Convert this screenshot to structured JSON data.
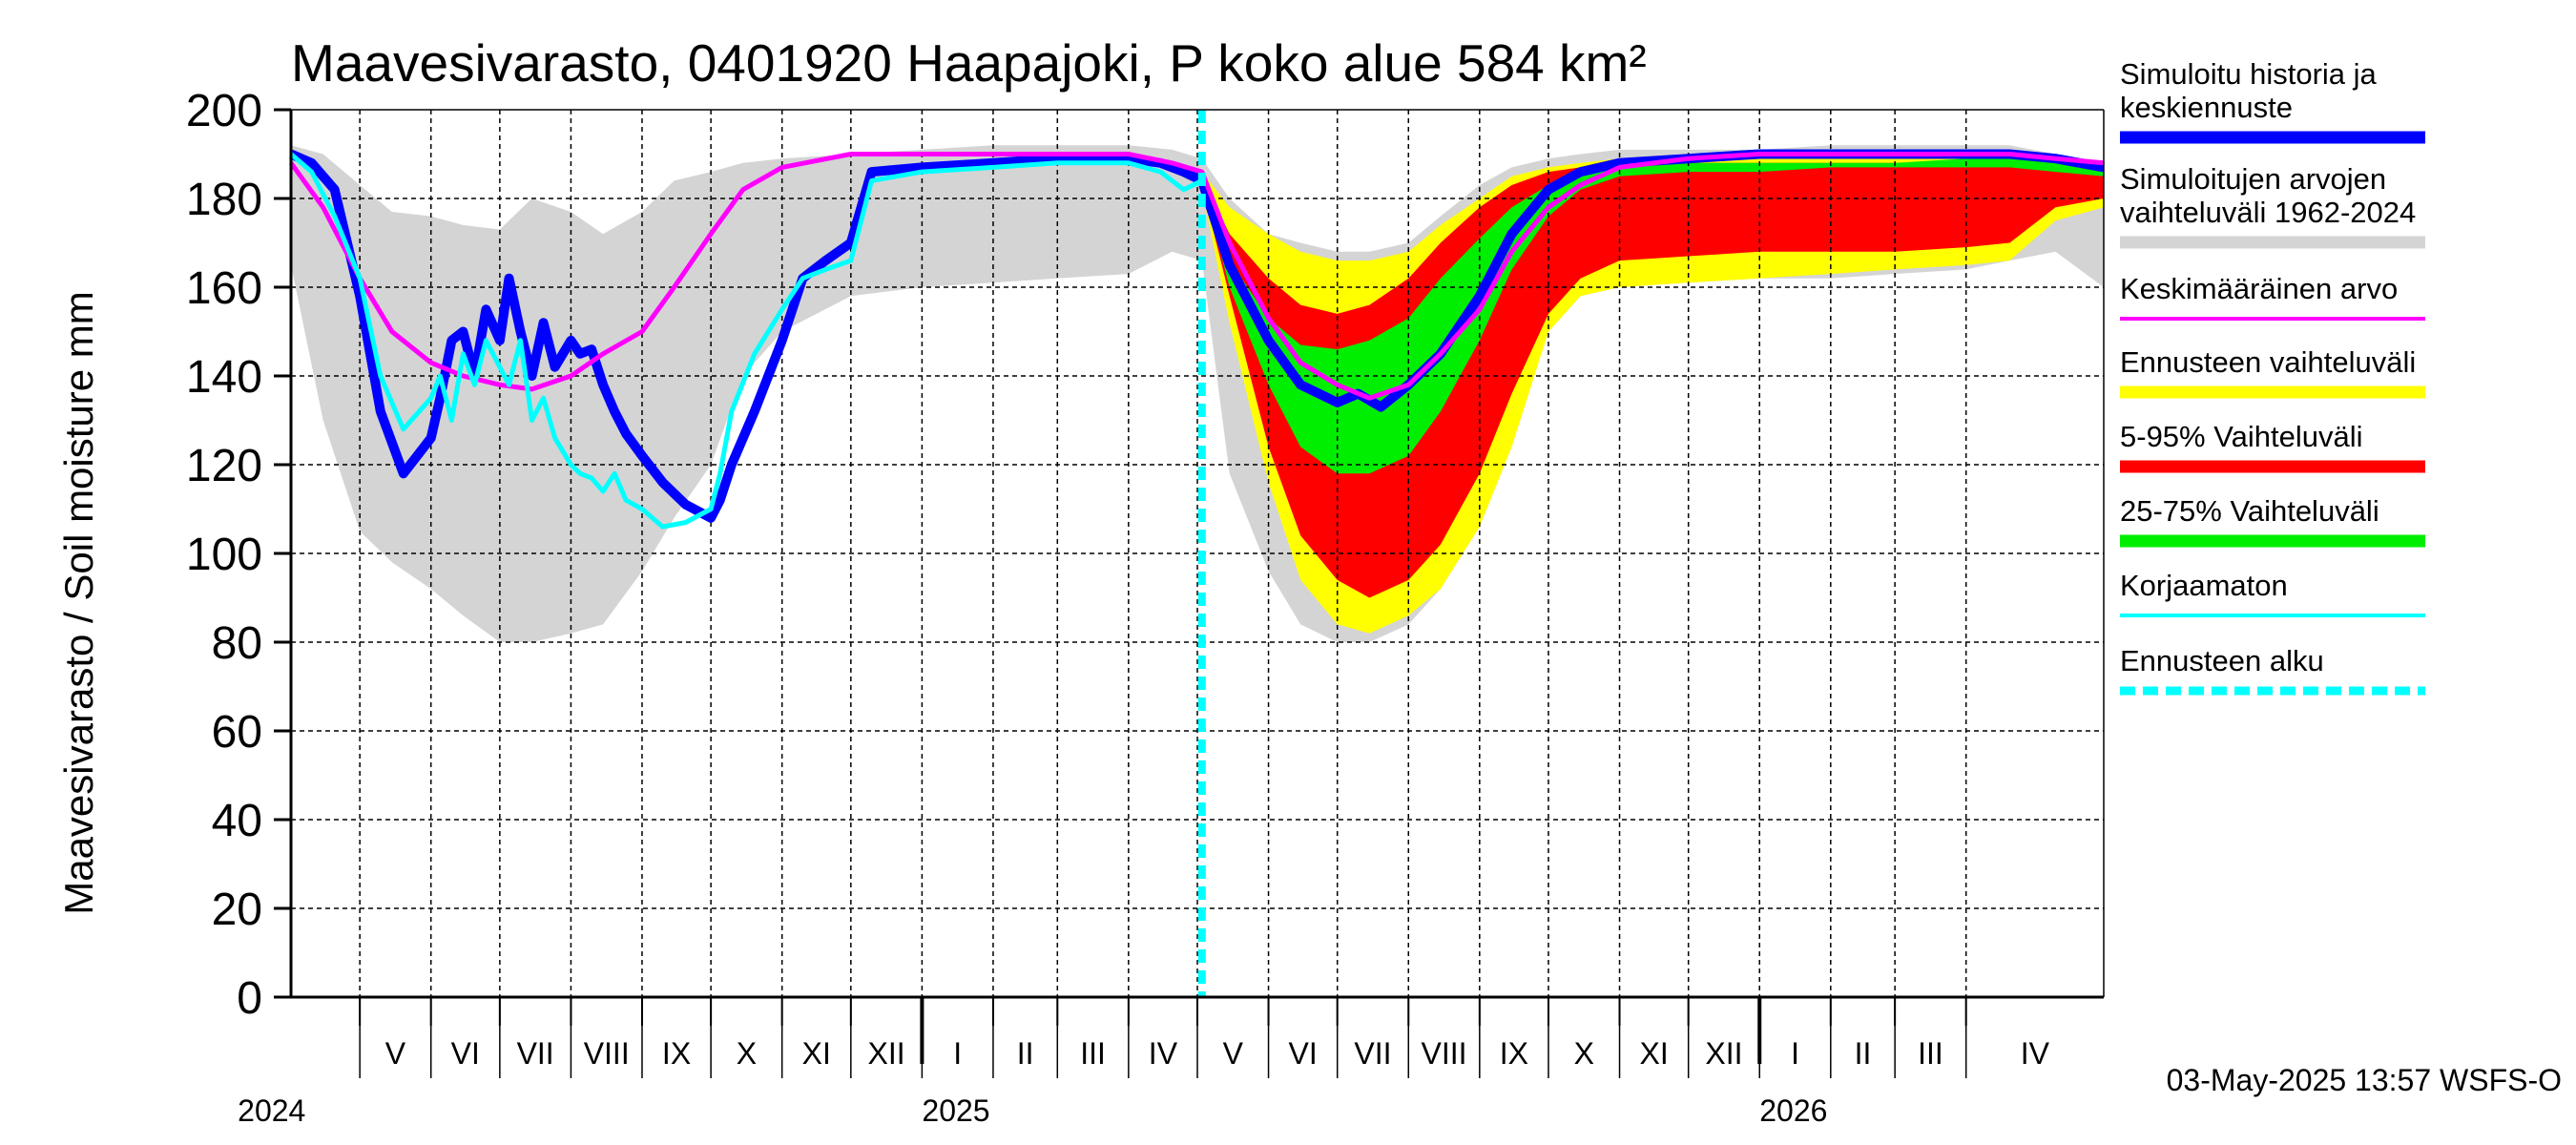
{
  "chart_data": {
    "type": "area",
    "title": "Maavesivarasto, 0401920 Haapajoki, P koko alue 584 km²",
    "ylabel": "Maavesivarasto / Soil moisture   mm",
    "ylim": [
      0,
      200
    ],
    "yticks": [
      "0",
      "20",
      "40",
      "60",
      "80",
      "100",
      "120",
      "140",
      "160",
      "180",
      "200"
    ],
    "grid": true,
    "legend_position": "right",
    "x_range": [
      "2024-04-01",
      "2026-05-31"
    ],
    "forecast_start": "2025-05-03",
    "months": [
      {
        "label": "V",
        "start": "2024-05-01"
      },
      {
        "label": "VI",
        "start": "2024-06-01"
      },
      {
        "label": "VII",
        "start": "2024-07-01"
      },
      {
        "label": "VIII",
        "start": "2024-08-01"
      },
      {
        "label": "IX",
        "start": "2024-09-01"
      },
      {
        "label": "X",
        "start": "2024-10-01"
      },
      {
        "label": "XI",
        "start": "2024-11-01"
      },
      {
        "label": "XII",
        "start": "2024-12-01"
      },
      {
        "label": "I",
        "start": "2025-01-01"
      },
      {
        "label": "II",
        "start": "2025-02-01"
      },
      {
        "label": "III",
        "start": "2025-03-01"
      },
      {
        "label": "IV",
        "start": "2025-04-01"
      },
      {
        "label": "V",
        "start": "2025-05-01"
      },
      {
        "label": "VI",
        "start": "2025-06-01"
      },
      {
        "label": "VII",
        "start": "2025-07-01"
      },
      {
        "label": "VIII",
        "start": "2025-08-01"
      },
      {
        "label": "IX",
        "start": "2025-09-01"
      },
      {
        "label": "X",
        "start": "2025-10-01"
      },
      {
        "label": "XI",
        "start": "2025-11-01"
      },
      {
        "label": "XII",
        "start": "2025-12-01"
      },
      {
        "label": "I",
        "start": "2026-01-01"
      },
      {
        "label": "II",
        "start": "2026-02-01"
      },
      {
        "label": "III",
        "start": "2026-03-01"
      },
      {
        "label": "IV",
        "start": "2026-04-01"
      }
    ],
    "years": [
      {
        "label": "2024",
        "at": "2024-05-01"
      },
      {
        "label": "2025",
        "at": "2025-01-01"
      },
      {
        "label": "2026",
        "at": "2026-01-01"
      }
    ],
    "bands": [
      {
        "legend": "vaihteluväli 1962-2024",
        "color": "#d4d4d4",
        "x": [
          "2024-04-01",
          "2024-04-15",
          "2024-05-01",
          "2024-05-15",
          "2024-06-01",
          "2024-06-15",
          "2024-07-01",
          "2024-07-15",
          "2024-08-01",
          "2024-08-15",
          "2024-09-01",
          "2024-09-15",
          "2024-10-01",
          "2024-10-15",
          "2024-11-01",
          "2024-12-01",
          "2025-01-01",
          "2025-02-01",
          "2025-03-01",
          "2025-04-01",
          "2025-04-20",
          "2025-05-03",
          "2025-05-15",
          "2025-06-01",
          "2025-06-15",
          "2025-07-01",
          "2025-07-15",
          "2025-08-01",
          "2025-08-15",
          "2025-09-01",
          "2025-09-15",
          "2025-10-01",
          "2025-10-15",
          "2025-11-01",
          "2025-12-01",
          "2026-01-01",
          "2026-02-01",
          "2026-03-01",
          "2026-04-01",
          "2026-04-20",
          "2026-05-10",
          "2026-05-31"
        ],
        "high": [
          192,
          190,
          183,
          177,
          176,
          174,
          173,
          180,
          177,
          172,
          177,
          184,
          186,
          188,
          189,
          190,
          191,
          192,
          192,
          192,
          191,
          189,
          180,
          172,
          170,
          168,
          168,
          170,
          176,
          183,
          187,
          189,
          190,
          191,
          191,
          191,
          192,
          192,
          192,
          192,
          190,
          188
        ],
        "low": [
          165,
          130,
          105,
          98,
          92,
          86,
          80,
          80,
          82,
          84,
          96,
          108,
          120,
          140,
          150,
          158,
          160,
          161,
          162,
          163,
          168,
          166,
          118,
          96,
          84,
          80,
          80,
          84,
          92,
          112,
          130,
          150,
          158,
          160,
          161,
          162,
          162,
          163,
          164,
          166,
          168,
          160
        ]
      },
      {
        "legend": "Ennusteen vaihteluväli",
        "color": "#ffff00",
        "x": [
          "2025-05-03",
          "2025-05-15",
          "2025-06-01",
          "2025-06-15",
          "2025-07-01",
          "2025-07-15",
          "2025-08-01",
          "2025-08-15",
          "2025-09-01",
          "2025-09-15",
          "2025-10-01",
          "2025-10-15",
          "2025-11-01",
          "2025-12-01",
          "2026-01-01",
          "2026-02-01",
          "2026-03-01",
          "2026-04-01",
          "2026-04-20",
          "2026-05-10",
          "2026-05-31"
        ],
        "high": [
          186,
          178,
          172,
          168,
          166,
          166,
          168,
          174,
          180,
          185,
          187,
          188,
          189,
          189,
          190,
          190,
          190,
          190,
          190,
          189,
          188
        ],
        "low": [
          182,
          152,
          116,
          94,
          84,
          82,
          86,
          92,
          106,
          124,
          150,
          158,
          160,
          161,
          162,
          163,
          164,
          165,
          166,
          175,
          178
        ]
      },
      {
        "legend": "5-95% Vaihteluväli",
        "color": "#ff0000",
        "x": [
          "2025-05-03",
          "2025-05-15",
          "2025-06-01",
          "2025-06-15",
          "2025-07-01",
          "2025-07-15",
          "2025-08-01",
          "2025-08-15",
          "2025-09-01",
          "2025-09-15",
          "2025-10-01",
          "2025-10-15",
          "2025-11-01",
          "2025-12-01",
          "2026-01-01",
          "2026-02-01",
          "2026-03-01",
          "2026-04-01",
          "2026-04-20",
          "2026-05-10",
          "2026-05-31"
        ],
        "high": [
          185,
          172,
          162,
          156,
          154,
          156,
          162,
          170,
          178,
          183,
          186,
          187,
          188,
          188,
          188,
          188,
          188,
          188,
          188,
          187,
          186
        ],
        "low": [
          183,
          158,
          124,
          104,
          94,
          90,
          94,
          102,
          118,
          136,
          154,
          162,
          166,
          167,
          168,
          168,
          168,
          169,
          170,
          178,
          180
        ]
      },
      {
        "legend": "25-75% Vaihteluväli",
        "color": "#00ee00",
        "x": [
          "2025-05-03",
          "2025-05-15",
          "2025-06-01",
          "2025-06-15",
          "2025-07-01",
          "2025-07-15",
          "2025-08-01",
          "2025-08-15",
          "2025-09-01",
          "2025-09-15",
          "2025-10-01",
          "2025-10-15",
          "2025-11-01",
          "2025-12-01",
          "2026-01-01",
          "2026-02-01",
          "2026-03-01",
          "2026-04-01",
          "2026-04-20",
          "2026-05-10",
          "2026-05-31"
        ],
        "high": [
          185,
          166,
          153,
          147,
          146,
          148,
          153,
          162,
          171,
          178,
          183,
          186,
          187,
          188,
          188,
          188,
          188,
          189,
          189,
          188,
          187
        ],
        "low": [
          184,
          160,
          138,
          124,
          118,
          118,
          122,
          132,
          148,
          164,
          176,
          182,
          185,
          186,
          186,
          187,
          187,
          187,
          187,
          186,
          185
        ]
      }
    ],
    "series": [
      {
        "name": "Simuloitu historia ja keskiennuste",
        "color": "#0000ff",
        "width": 10,
        "x": [
          "2024-04-01",
          "2024-04-10",
          "2024-04-20",
          "2024-05-01",
          "2024-05-10",
          "2024-05-20",
          "2024-06-01",
          "2024-06-05",
          "2024-06-10",
          "2024-06-15",
          "2024-06-20",
          "2024-06-25",
          "2024-07-01",
          "2024-07-05",
          "2024-07-10",
          "2024-07-15",
          "2024-07-20",
          "2024-07-25",
          "2024-08-01",
          "2024-08-05",
          "2024-08-10",
          "2024-08-15",
          "2024-08-20",
          "2024-08-25",
          "2024-09-01",
          "2024-09-10",
          "2024-09-20",
          "2024-10-01",
          "2024-10-05",
          "2024-10-10",
          "2024-10-20",
          "2024-11-01",
          "2024-11-10",
          "2024-11-20",
          "2024-12-01",
          "2024-12-10",
          "2025-01-01",
          "2025-02-01",
          "2025-03-01",
          "2025-04-01",
          "2025-04-15",
          "2025-04-25",
          "2025-05-03",
          "2025-05-15",
          "2025-06-01",
          "2025-06-15",
          "2025-07-01",
          "2025-07-10",
          "2025-07-20",
          "2025-08-01",
          "2025-08-15",
          "2025-09-01",
          "2025-09-15",
          "2025-10-01",
          "2025-10-15",
          "2025-11-01",
          "2025-12-01",
          "2026-01-01",
          "2026-02-01",
          "2026-03-01",
          "2026-04-01",
          "2026-04-20",
          "2026-05-10",
          "2026-05-31"
        ],
        "values": [
          190,
          188,
          182,
          158,
          132,
          118,
          126,
          135,
          148,
          150,
          140,
          155,
          148,
          162,
          150,
          140,
          152,
          142,
          148,
          145,
          146,
          138,
          132,
          127,
          122,
          116,
          111,
          108,
          112,
          120,
          132,
          148,
          162,
          166,
          170,
          186,
          187,
          188,
          189,
          189,
          188,
          186,
          184,
          165,
          148,
          138,
          134,
          136,
          133,
          138,
          145,
          158,
          172,
          182,
          186,
          188,
          189,
          190,
          190,
          190,
          190,
          190,
          189,
          187
        ]
      },
      {
        "name": "Keskimääräinen arvo",
        "color": "#ff00ff",
        "width": 5,
        "x": [
          "2024-04-01",
          "2024-04-15",
          "2024-05-01",
          "2024-05-15",
          "2024-06-01",
          "2024-06-15",
          "2024-07-01",
          "2024-07-15",
          "2024-08-01",
          "2024-08-15",
          "2024-09-01",
          "2024-09-15",
          "2024-10-01",
          "2024-10-15",
          "2024-11-01",
          "2024-12-01",
          "2025-01-01",
          "2025-02-01",
          "2025-03-01",
          "2025-04-01",
          "2025-04-20",
          "2025-05-03",
          "2025-05-15",
          "2025-06-01",
          "2025-06-15",
          "2025-07-01",
          "2025-07-15",
          "2025-08-01",
          "2025-08-15",
          "2025-09-01",
          "2025-09-15",
          "2025-10-01",
          "2025-10-15",
          "2025-11-01",
          "2025-12-01",
          "2026-01-01",
          "2026-02-01",
          "2026-03-01",
          "2026-04-01",
          "2026-04-20",
          "2026-05-10",
          "2026-05-31"
        ],
        "values": [
          188,
          178,
          162,
          150,
          143,
          140,
          138,
          137,
          140,
          145,
          150,
          160,
          172,
          182,
          187,
          190,
          190,
          190,
          190,
          190,
          188,
          186,
          170,
          153,
          143,
          138,
          135,
          138,
          145,
          155,
          168,
          178,
          183,
          187,
          189,
          190,
          190,
          190,
          190,
          190,
          189,
          188
        ]
      },
      {
        "name": "Korjaamaton",
        "color": "#00ffff",
        "width": 5,
        "x": [
          "2024-04-01",
          "2024-04-10",
          "2024-04-20",
          "2024-05-01",
          "2024-05-10",
          "2024-05-20",
          "2024-06-01",
          "2024-06-05",
          "2024-06-10",
          "2024-06-15",
          "2024-06-20",
          "2024-06-25",
          "2024-07-01",
          "2024-07-05",
          "2024-07-10",
          "2024-07-15",
          "2024-07-20",
          "2024-07-25",
          "2024-08-01",
          "2024-08-05",
          "2024-08-10",
          "2024-08-15",
          "2024-08-20",
          "2024-08-25",
          "2024-09-01",
          "2024-09-10",
          "2024-09-20",
          "2024-10-01",
          "2024-10-05",
          "2024-10-10",
          "2024-10-20",
          "2024-11-01",
          "2024-11-10",
          "2024-11-20",
          "2024-12-01",
          "2024-12-10",
          "2025-01-01",
          "2025-02-01",
          "2025-03-01",
          "2025-04-01",
          "2025-04-15",
          "2025-04-25",
          "2025-05-03"
        ],
        "values": [
          190,
          186,
          176,
          162,
          140,
          128,
          135,
          140,
          130,
          145,
          138,
          148,
          142,
          138,
          148,
          130,
          135,
          126,
          120,
          118,
          117,
          114,
          118,
          112,
          110,
          106,
          107,
          110,
          118,
          132,
          145,
          155,
          162,
          164,
          166,
          184,
          186,
          187,
          188,
          188,
          186,
          182,
          184
        ]
      }
    ],
    "legend": [
      {
        "label": "Simuloitu historia ja keskiennuste",
        "color": "#0000ff",
        "style": "solid"
      },
      {
        "label": "Simuloitujen arvojen vaihteluväli 1962-2024",
        "color": "#d4d4d4",
        "style": "solid"
      },
      {
        "label": "Keskimääräinen arvo",
        "color": "#ff00ff",
        "style": "thin"
      },
      {
        "label": "Ennusteen vaihteluväli",
        "color": "#ffff00",
        "style": "solid"
      },
      {
        "label": "5-95% Vaihteluväli",
        "color": "#ff0000",
        "style": "solid"
      },
      {
        "label": "25-75% Vaihteluväli",
        "color": "#00ee00",
        "style": "solid"
      },
      {
        "label": "Korjaamaton",
        "color": "#00ffff",
        "style": "thin"
      },
      {
        "label": "Ennusteen alku",
        "color": "#00ffff",
        "style": "dashed"
      }
    ],
    "footer": "03-May-2025 13:57 WSFS-O"
  }
}
